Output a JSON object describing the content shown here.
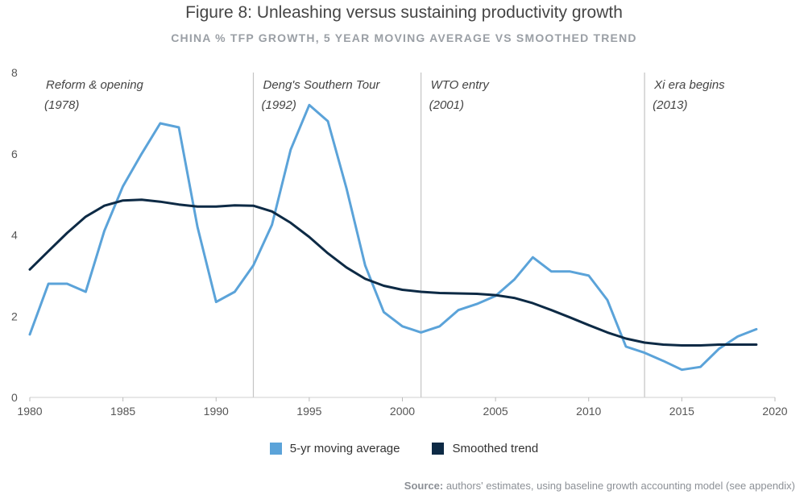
{
  "chart_data": {
    "type": "line",
    "title": "Figure 8: Unleashing versus sustaining productivity growth",
    "subtitle": "CHINA % TFP GROWTH, 5 YEAR MOVING AVERAGE VS SMOOTHED TREND",
    "xlim": [
      1980,
      2020
    ],
    "ylim": [
      0,
      8
    ],
    "xticks": [
      1980,
      1985,
      1990,
      1995,
      2000,
      2005,
      2010,
      2015,
      2020
    ],
    "yticks": [
      0,
      2,
      4,
      6,
      8
    ],
    "grid": false,
    "legend_position": "bottom",
    "x": [
      1980,
      1981,
      1982,
      1983,
      1984,
      1985,
      1986,
      1987,
      1988,
      1989,
      1990,
      1991,
      1992,
      1993,
      1994,
      1995,
      1996,
      1997,
      1998,
      1999,
      2000,
      2001,
      2002,
      2003,
      2004,
      2005,
      2006,
      2007,
      2008,
      2009,
      2010,
      2011,
      2012,
      2013,
      2014,
      2015,
      2016,
      2017,
      2018,
      2019
    ],
    "series": [
      {
        "name": "5-yr moving average",
        "color": "#5ba3d9",
        "values": [
          1.55,
          2.8,
          2.8,
          2.6,
          4.1,
          5.2,
          6.0,
          6.75,
          6.65,
          4.2,
          2.35,
          2.6,
          3.25,
          4.25,
          6.1,
          7.2,
          6.8,
          5.15,
          3.25,
          2.1,
          1.75,
          1.6,
          1.75,
          2.15,
          2.3,
          2.5,
          2.9,
          3.45,
          3.1,
          3.1,
          3.0,
          2.4,
          1.25,
          1.1,
          0.9,
          0.68,
          0.75,
          1.2,
          1.5,
          1.68
        ]
      },
      {
        "name": "Smoothed trend",
        "color": "#0d2a45",
        "values": [
          3.15,
          3.6,
          4.05,
          4.45,
          4.72,
          4.85,
          4.87,
          4.82,
          4.75,
          4.7,
          4.7,
          4.73,
          4.72,
          4.58,
          4.3,
          3.95,
          3.55,
          3.2,
          2.92,
          2.75,
          2.65,
          2.6,
          2.57,
          2.56,
          2.55,
          2.52,
          2.45,
          2.32,
          2.15,
          1.97,
          1.78,
          1.6,
          1.45,
          1.35,
          1.3,
          1.28,
          1.28,
          1.3,
          1.3,
          1.3
        ]
      }
    ],
    "annotations": [
      {
        "x": 1992,
        "line": true,
        "label": "Deng's Southern Tour",
        "year": "(1992)"
      },
      {
        "x": 2001,
        "line": true,
        "label": "WTO entry",
        "year": "(2001)"
      },
      {
        "x": 2013,
        "line": true,
        "label": "Xi era begins",
        "year": "(2013)"
      },
      {
        "x": 1980,
        "line": false,
        "label": "Reform & opening",
        "year": "(1978)"
      }
    ]
  },
  "source_label": "Source:",
  "source_text": " authors' estimates, using baseline growth accounting model (see appendix)"
}
